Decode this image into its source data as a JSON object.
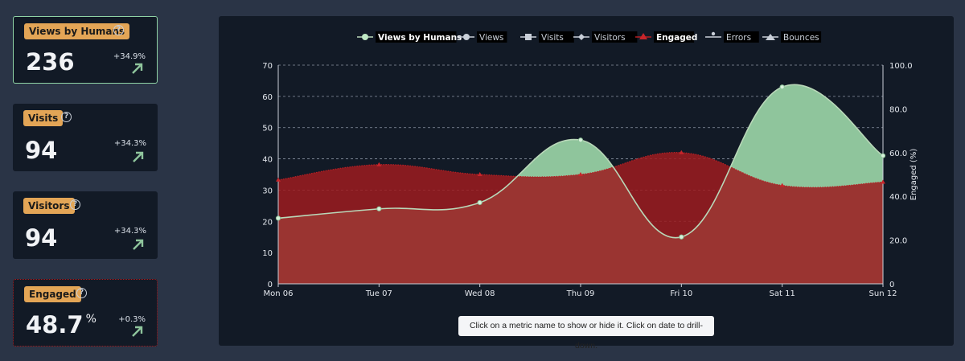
{
  "cards": [
    {
      "label": "Views by Humans",
      "value": "236",
      "unit": "",
      "change": "+34.9%"
    },
    {
      "label": "Visits",
      "value": "94",
      "unit": "",
      "change": "+34.3%"
    },
    {
      "label": "Visitors",
      "value": "94",
      "unit": "",
      "change": "+34.3%"
    },
    {
      "label": "Engaged",
      "value": "48.7",
      "unit": "%",
      "change": "+0.3%"
    }
  ],
  "hint": "Click on a metric name to show or hide it. Click on date to drill-down.",
  "colors": {
    "views_by_humans": "#8fc59c",
    "engaged": "#9c1c20",
    "views_line": "#c9cfd8",
    "accent_badge": "#e3a556"
  },
  "legend": [
    {
      "name": "Views by Humans",
      "icon": "circle-line-icon",
      "active": true
    },
    {
      "name": "Views",
      "icon": "circle-line-icon",
      "active": false
    },
    {
      "name": "Visits",
      "icon": "square-line-icon",
      "active": false
    },
    {
      "name": "Visitors",
      "icon": "diamond-line-icon",
      "active": false
    },
    {
      "name": "Engaged",
      "icon": "triangle-line-icon",
      "active": true
    },
    {
      "name": "Errors",
      "icon": "pin-line-icon",
      "active": false
    },
    {
      "name": "Bounces",
      "icon": "bounce-line-icon",
      "active": false
    }
  ],
  "chart_data": {
    "type": "area",
    "categories": [
      "Mon 06",
      "Tue 07",
      "Wed 08",
      "Thu 09",
      "Fri 10",
      "Sat 11",
      "Sun 12"
    ],
    "series": [
      {
        "name": "Views by Humans",
        "axis": "left",
        "values": [
          21,
          24,
          26,
          46,
          15,
          63,
          41
        ]
      },
      {
        "name": "Engaged",
        "axis": "right",
        "values": [
          47.5,
          54.5,
          50,
          50,
          60,
          45,
          46.5
        ]
      }
    ],
    "ylim_left": [
      0,
      70
    ],
    "yticks_left": [
      0,
      10,
      20,
      30,
      40,
      50,
      60,
      70
    ],
    "ylim_right": [
      0,
      100
    ],
    "yticks_right": [
      "0",
      "20.0",
      "40.0",
      "60.0",
      "80.0",
      "100.0"
    ],
    "ylabel_right": "Engaged (%)",
    "grid": true,
    "legend_position": "top-center"
  }
}
